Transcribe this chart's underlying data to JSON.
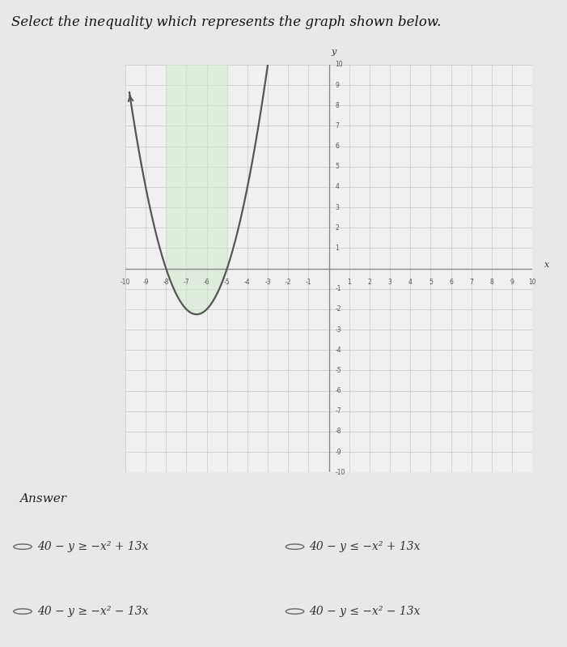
{
  "title": "Select the inequality which represents the graph shown below.",
  "title_fontsize": 12,
  "answer_label": "Answer",
  "parabola_a": 1,
  "parabola_b": 13,
  "parabola_c": 40,
  "shade_color": "#d0e8cc",
  "shade_alpha": 0.5,
  "curve_color": "#555555",
  "curve_lw": 1.6,
  "xmin": -10,
  "xmax": 10,
  "ymin": -10,
  "ymax": 10,
  "grid_color": "#c8c8c8",
  "grid_lw": 0.5,
  "axis_color": "#888888",
  "axis_lw": 1.0,
  "bg_color": "#e8e8e8",
  "graph_bg": "#f0f0f0",
  "answer_choices_left": [
    "40 − y ≥ −x² + 13x",
    "40 − y ≥ −x² − 13x"
  ],
  "answer_choices_right": [
    "40 − y ≤ −x² + 13x",
    "40 − y ≤ −x² − 13x"
  ],
  "ytick_labels_right": [
    "10",
    "9",
    "8",
    "7",
    "6",
    "5",
    "4",
    "3",
    "2",
    "1",
    "",
    "-1",
    "-2",
    "-3",
    "-4",
    "-5",
    "-6",
    "-7",
    "-8",
    "-9",
    "-10"
  ]
}
